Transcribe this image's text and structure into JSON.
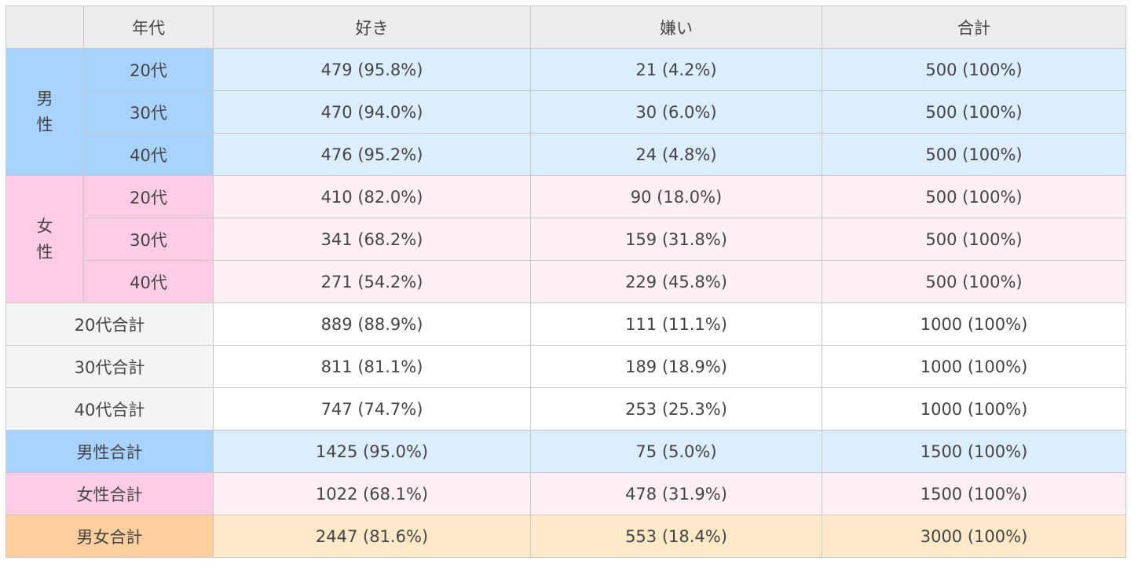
{
  "header": {
    "age": "年代",
    "like": "好き",
    "dislike": "嫌い",
    "total": "合計"
  },
  "groups": [
    {
      "gender": "男性",
      "rows": [
        {
          "age": "20代",
          "like": "479 (95.8%)",
          "dislike": "21 (4.2%)",
          "total": "500 (100%)"
        },
        {
          "age": "30代",
          "like": "470 (94.0%)",
          "dislike": "30 (6.0%)",
          "total": "500 (100%)"
        },
        {
          "age": "40代",
          "like": "476 (95.2%)",
          "dislike": "24 (4.8%)",
          "total": "500 (100%)"
        }
      ]
    },
    {
      "gender": "女性",
      "rows": [
        {
          "age": "20代",
          "like": "410 (82.0%)",
          "dislike": "90 (18.0%)",
          "total": "500 (100%)"
        },
        {
          "age": "30代",
          "like": "341 (68.2%)",
          "dislike": "159 (31.8%)",
          "total": "500 (100%)"
        },
        {
          "age": "40代",
          "like": "271 (54.2%)",
          "dislike": "229 (45.8%)",
          "total": "500 (100%)"
        }
      ]
    }
  ],
  "age_totals": [
    {
      "label": "20代合計",
      "like": "889 (88.9%)",
      "dislike": "111 (11.1%)",
      "total": "1000 (100%)"
    },
    {
      "label": "30代合計",
      "like": "811 (81.1%)",
      "dislike": "189 (18.9%)",
      "total": "1000 (100%)"
    },
    {
      "label": "40代合計",
      "like": "747 (74.7%)",
      "dislike": "253 (25.3%)",
      "total": "1000 (100%)"
    }
  ],
  "gender_totals": [
    {
      "label": "男性合計",
      "like": "1425 (95.0%)",
      "dislike": "75 (5.0%)",
      "total": "1500 (100%)"
    },
    {
      "label": "女性合計",
      "like": "1022 (68.1%)",
      "dislike": "478 (31.9%)",
      "total": "1500 (100%)"
    }
  ],
  "grand_total": {
    "label": "男女合計",
    "like": "2447 (81.6%)",
    "dislike": "553 (18.4%)",
    "total": "3000 (100%)"
  },
  "colors": {
    "male_label": "#a9d3ff",
    "male_cell": "#dcedff",
    "female_label": "#ffcce6",
    "female_cell": "#fff0f7",
    "subtotal_label": "#f4f4f4",
    "grand_label": "#ffcf9e",
    "grand_cell": "#ffe9c6",
    "header": "#ececec",
    "border": "#c8c8c8"
  }
}
